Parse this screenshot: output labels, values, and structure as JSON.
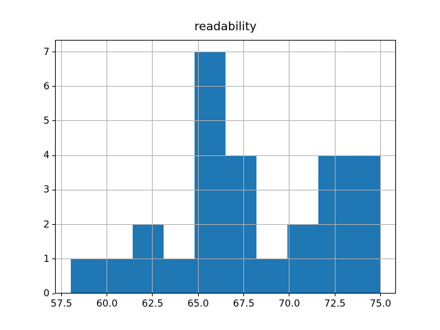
{
  "chart_data": {
    "type": "bar",
    "subtype": "histogram",
    "title": "readability",
    "xlabel": "",
    "ylabel": "",
    "bin_edges": [
      58.0,
      59.7,
      61.4,
      63.1,
      64.8,
      66.5,
      68.2,
      69.9,
      71.6,
      73.3,
      75.0
    ],
    "counts": [
      1,
      1,
      2,
      1,
      7,
      4,
      1,
      2,
      4,
      4
    ],
    "x_ticks": [
      57.5,
      60.0,
      62.5,
      65.0,
      67.5,
      70.0,
      72.5,
      75.0
    ],
    "x_tick_labels": [
      "57.5",
      "60.0",
      "62.5",
      "65.0",
      "67.5",
      "70.0",
      "72.5",
      "75.0"
    ],
    "y_ticks": [
      0,
      1,
      2,
      3,
      4,
      5,
      6,
      7
    ],
    "y_tick_labels": [
      "0",
      "1",
      "2",
      "3",
      "4",
      "5",
      "6",
      "7"
    ],
    "xlim": [
      57.15,
      75.85
    ],
    "ylim": [
      0,
      7.35
    ],
    "grid": true,
    "legend": false,
    "colors": {
      "bar": "#1f77b4",
      "grid": "#b0b0b0",
      "spine": "#000000",
      "text": "#000000",
      "background": "#ffffff"
    }
  }
}
